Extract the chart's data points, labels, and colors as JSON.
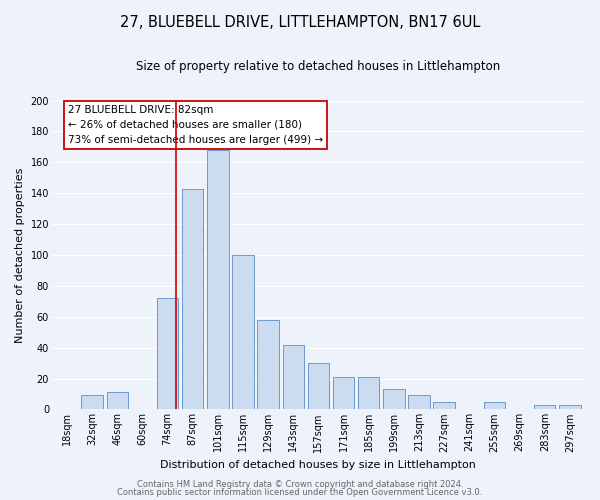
{
  "title": "27, BLUEBELL DRIVE, LITTLEHAMPTON, BN17 6UL",
  "subtitle": "Size of property relative to detached houses in Littlehampton",
  "xlabel": "Distribution of detached houses by size in Littlehampton",
  "ylabel": "Number of detached properties",
  "categories": [
    "18sqm",
    "32sqm",
    "46sqm",
    "60sqm",
    "74sqm",
    "87sqm",
    "101sqm",
    "115sqm",
    "129sqm",
    "143sqm",
    "157sqm",
    "171sqm",
    "185sqm",
    "199sqm",
    "213sqm",
    "227sqm",
    "241sqm",
    "255sqm",
    "269sqm",
    "283sqm",
    "297sqm"
  ],
  "bar_heights": [
    0,
    9,
    11,
    0,
    72,
    143,
    168,
    100,
    58,
    42,
    30,
    21,
    21,
    13,
    9,
    5,
    0,
    5,
    0,
    3,
    3
  ],
  "bar_color": "#ccdcf0",
  "bar_edge_color": "#5b8dc8",
  "vline_color": "#cc0000",
  "vline_x_index": 4.35,
  "ylim": [
    0,
    200
  ],
  "yticks": [
    0,
    20,
    40,
    60,
    80,
    100,
    120,
    140,
    160,
    180,
    200
  ],
  "annotation_title": "27 BLUEBELL DRIVE: 82sqm",
  "annotation_line1": "← 26% of detached houses are smaller (180)",
  "annotation_line2": "73% of semi-detached houses are larger (499) →",
  "annotation_box_color": "#ffffff",
  "annotation_box_edge": "#cc0000",
  "footer1": "Contains HM Land Registry data © Crown copyright and database right 2024.",
  "footer2": "Contains public sector information licensed under the Open Government Licence v3.0.",
  "background_color": "#eef2fb",
  "grid_color": "#ffffff",
  "title_fontsize": 10.5,
  "subtitle_fontsize": 8.5,
  "axis_label_fontsize": 8,
  "tick_fontsize": 7,
  "footer_fontsize": 6,
  "annotation_fontsize": 7.5
}
